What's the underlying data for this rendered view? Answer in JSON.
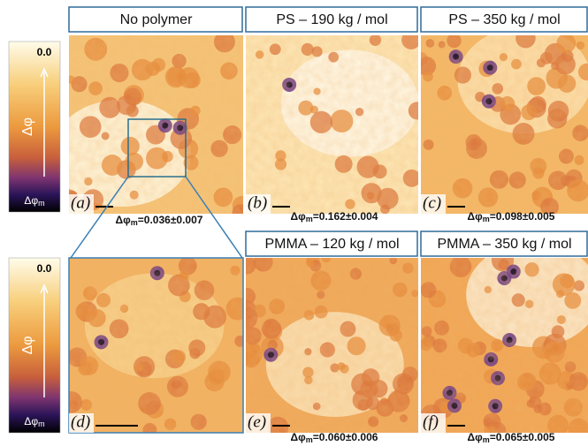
{
  "colorbars": [
    {
      "max": "0.0",
      "quantity": "Δφ",
      "min": {
        "symbol": "Δφ",
        "subscript": "m"
      }
    },
    {
      "max": "0.0",
      "quantity": "Δφ",
      "min": {
        "symbol": "Δφ",
        "subscript": "m"
      }
    }
  ],
  "panels": [
    {
      "title": "No polymer",
      "label": "(a)",
      "result": {
        "symbol": "Δφ",
        "subscript": "m",
        "value": "=0.036±0.007"
      }
    },
    {
      "title": "PS – 190 kg / mol",
      "label": "(b)",
      "result": {
        "symbol": "Δφ",
        "subscript": "m",
        "value": "=0.162±0.004"
      }
    },
    {
      "title": "PS – 350 kg / mol",
      "label": "(c)",
      "result": {
        "symbol": "Δφ",
        "subscript": "m",
        "value": "=0.098±0.005"
      }
    },
    {
      "label": "(d)"
    },
    {
      "title": "PMMA – 120 kg / mol",
      "label": "(e)",
      "result": {
        "symbol": "Δφ",
        "subscript": "m",
        "value": "=0.060±0.006"
      }
    },
    {
      "title": "PMMA – 350 kg / mol",
      "label": "(f)",
      "result": {
        "symbol": "Δφ",
        "subscript": "m",
        "value": "=0.065±0.005"
      }
    }
  ]
}
